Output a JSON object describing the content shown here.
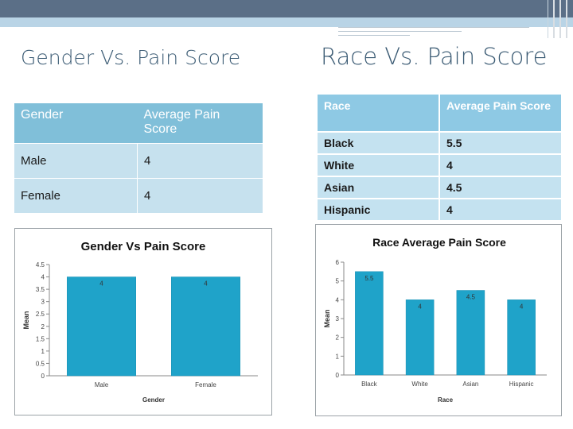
{
  "left": {
    "title": "Gender Vs. Pain Score",
    "table": {
      "headers": [
        "Gender",
        "Average Pain Score"
      ],
      "rows": [
        [
          "Male",
          "4"
        ],
        [
          "Female",
          "4"
        ]
      ]
    }
  },
  "right": {
    "title": "Race Vs. Pain Score",
    "table": {
      "headers": [
        "Race",
        "Average Pain Score"
      ],
      "rows": [
        [
          "Black",
          "5.5"
        ],
        [
          "White",
          "4"
        ],
        [
          "Asian",
          "4.5"
        ],
        [
          "Hispanic",
          "4"
        ]
      ]
    }
  },
  "chart_data": [
    {
      "type": "bar",
      "title": "Gender Vs Pain Score",
      "xlabel": "Gender",
      "ylabel": "Mean",
      "categories": [
        "Male",
        "Female"
      ],
      "values": [
        4,
        4
      ],
      "data_labels": [
        "4",
        "4"
      ],
      "ylim": [
        0,
        4.5
      ],
      "yticks": [
        "0",
        "0.5",
        "1",
        "1.5",
        "2",
        "2.5",
        "3",
        "3.5",
        "4",
        "4.5"
      ],
      "grid": false,
      "bar_color": "#1fa3c9"
    },
    {
      "type": "bar",
      "title": "Race Average Pain Score",
      "xlabel": "Race",
      "ylabel": "Mean",
      "categories": [
        "Black",
        "White",
        "Asian",
        "Hispanic"
      ],
      "values": [
        5.5,
        4,
        4.5,
        4
      ],
      "data_labels": [
        "5.5",
        "4",
        "4.5",
        "4"
      ],
      "ylim": [
        0,
        6
      ],
      "yticks": [
        "0",
        "1",
        "2",
        "3",
        "4",
        "5",
        "6"
      ],
      "grid": false,
      "bar_color": "#1fa3c9"
    }
  ],
  "colors": {
    "accent": "#80bfd9",
    "title_text": "#3b5b74",
    "top_bar": "#5b6f87"
  }
}
